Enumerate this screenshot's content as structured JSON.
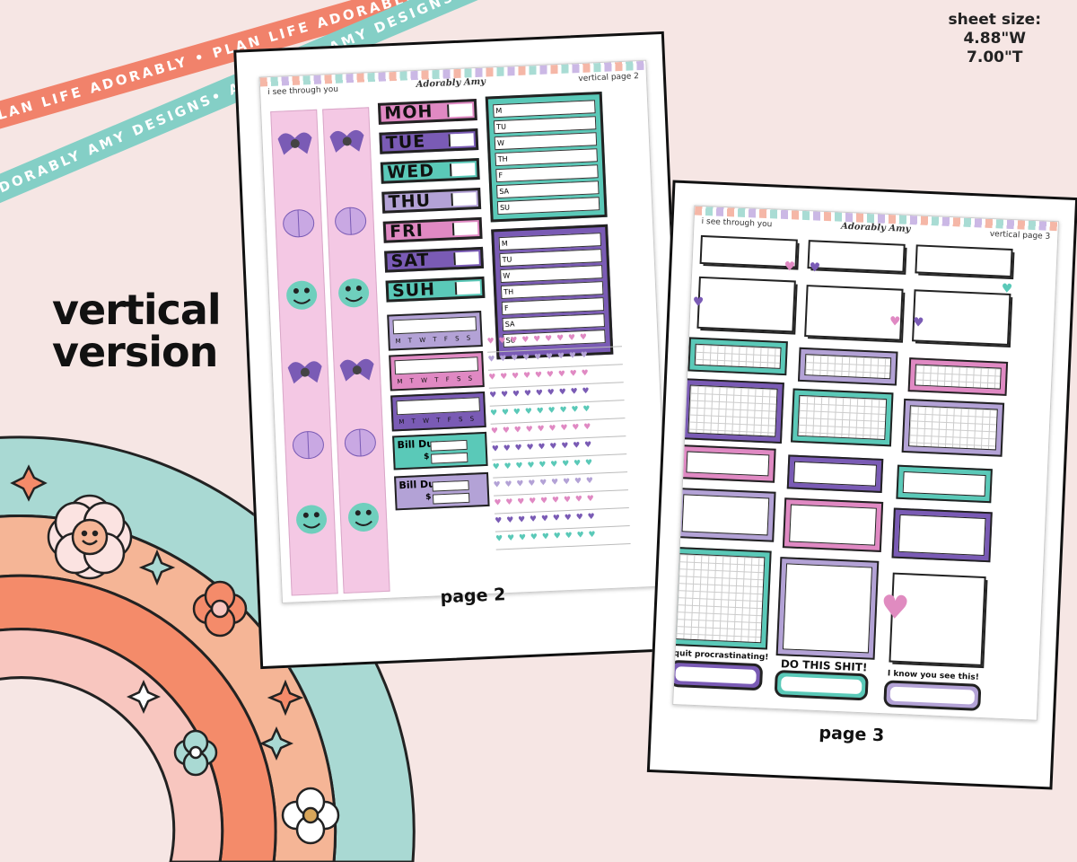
{
  "banners": {
    "top": "PLAN LIFE ADORABLY • PLAN LIFE ADORABLY • PLAN LIFE ADORABLY",
    "bottom": "ADORABLY AMY DESIGNS• ADORABLY AMY DESIGNS• ADORABLY AMY DESIGNS•"
  },
  "sheet_size": {
    "title": "sheet size:",
    "width": "4.88\"W",
    "height": "7.00\"T"
  },
  "headline": {
    "line1": "vertical",
    "line2": "version"
  },
  "colors": {
    "background": "#f6e6e4",
    "pink": "#e089c3",
    "purple": "#7a5bb5",
    "teal": "#5ac9b8",
    "lavender": "#b3a2d6",
    "coral": "#f1826b",
    "mint": "#84cfc6"
  },
  "page2": {
    "header_left": "i see through you",
    "header_logo": "Adorably Amy",
    "header_right": "vertical page 2",
    "caption": "page 2",
    "days": [
      "MOH",
      "TUE",
      "WED",
      "THU",
      "FRI",
      "SAT",
      "SUH"
    ],
    "week_rows": [
      "M",
      "TU",
      "W",
      "TH",
      "F",
      "SA",
      "SU"
    ],
    "habit_letters": "M T W T F S S",
    "bill_label": "Bill Due",
    "bill_currency": "$"
  },
  "page3": {
    "header_left": "i see through you",
    "header_logo": "Adorably Amy",
    "header_right": "vertical page 3",
    "caption": "page 3",
    "tag1": "quit procrastinating!",
    "tag2": "DO THIS SHIT!",
    "tag3": "I know you see this!"
  }
}
